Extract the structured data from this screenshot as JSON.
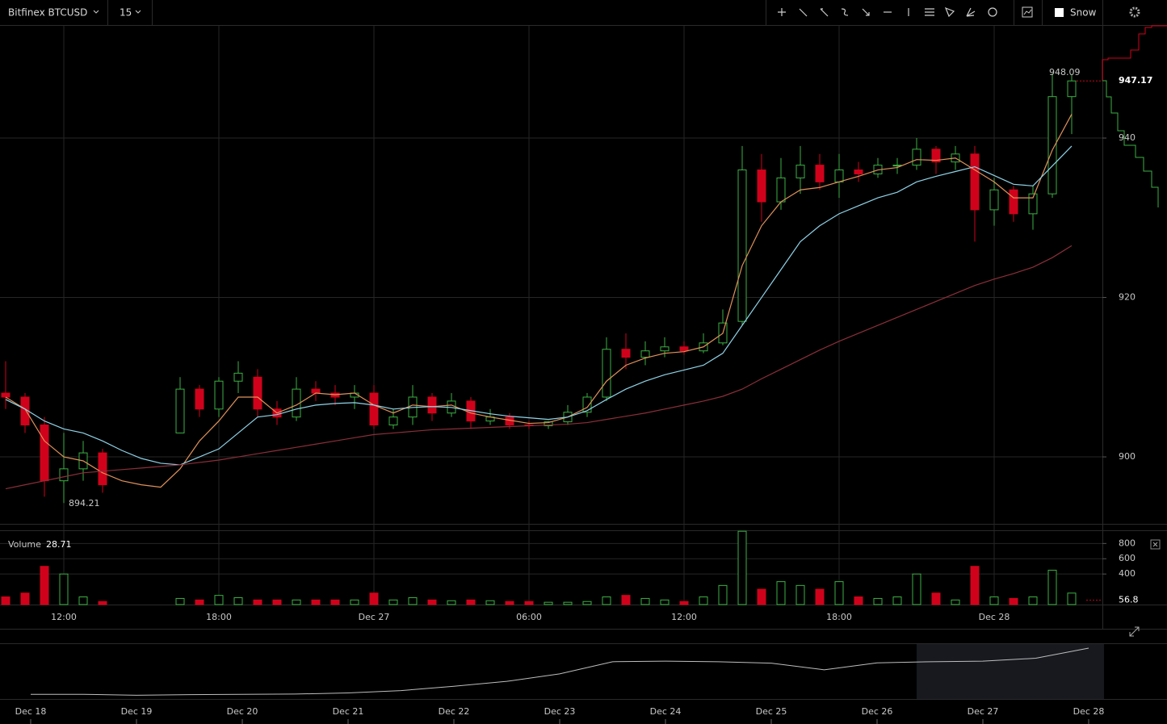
{
  "toolbar": {
    "symbol": "Bitfinex BTCUSD",
    "interval": "15",
    "snow": "Snow"
  },
  "chart_data": [
    {
      "type": "candlestick",
      "categories": [
        null,
        null,
        null,
        "12:00",
        null,
        null,
        null,
        null,
        null,
        null,
        null,
        "18:00",
        null,
        null,
        null,
        null,
        null,
        null,
        null,
        "Dec 27",
        null,
        null,
        null,
        null,
        null,
        null,
        null,
        "06:00",
        null,
        null,
        null,
        null,
        null,
        null,
        null,
        "12:00",
        null,
        null,
        null,
        null,
        null,
        null,
        null,
        "18:00",
        null,
        null,
        null,
        null,
        null,
        null,
        null,
        "Dec 28",
        null,
        null,
        null,
        null
      ],
      "open": [
        908,
        907.5,
        904,
        897,
        898.5,
        900.5,
        null,
        null,
        null,
        903,
        908.5,
        906,
        909.5,
        910,
        906,
        905,
        908.5,
        908,
        907.5,
        908,
        904,
        905,
        907.5,
        905.5,
        907,
        904.5,
        905,
        904,
        903.9,
        904.4,
        905.6,
        907.5,
        913.5,
        912.5,
        913.3,
        913.8,
        913.3,
        914.3,
        917,
        936,
        932,
        935,
        936.6,
        934.5,
        936,
        935.5,
        936.6,
        936.6,
        938.6,
        937,
        938,
        931,
        933.5,
        930.5,
        933,
        945.2
      ],
      "high": [
        912,
        908,
        905,
        903,
        902,
        901,
        null,
        null,
        null,
        910,
        909,
        910,
        912,
        911,
        907,
        910,
        909.5,
        909,
        909,
        909,
        906,
        909,
        908,
        908,
        907.5,
        906,
        905.5,
        904.5,
        904.5,
        906.5,
        908,
        915,
        915.5,
        914.5,
        915,
        914.5,
        915.5,
        918.5,
        939,
        938,
        937.5,
        939,
        938,
        938,
        937,
        937.5,
        937.5,
        940,
        939,
        939,
        939,
        935,
        934,
        934,
        948.09,
        948
      ],
      "low": [
        906,
        903,
        895,
        894.21,
        897,
        895.5,
        null,
        null,
        null,
        903,
        905,
        905,
        908,
        905,
        904,
        904.5,
        907,
        906.5,
        906,
        903.5,
        903.5,
        904,
        904.5,
        905,
        903.5,
        904,
        903.5,
        903.5,
        903.5,
        904,
        905,
        907,
        911,
        911.5,
        912.5,
        912.8,
        913,
        914,
        916.5,
        929.5,
        931,
        933,
        933.5,
        932.5,
        934.5,
        935,
        935.5,
        936,
        935.5,
        936,
        927,
        929,
        929.5,
        928.5,
        932.5,
        940.5
      ],
      "close": [
        907.5,
        904,
        897,
        898.5,
        900.5,
        896.5,
        null,
        null,
        null,
        908.5,
        906,
        909.5,
        910.5,
        906,
        905,
        908.5,
        908,
        907.5,
        908,
        904,
        905,
        907.5,
        905.5,
        907,
        904.5,
        905,
        904,
        903.9,
        904.4,
        905.6,
        907.5,
        913.5,
        912.5,
        913.3,
        913.8,
        913.3,
        914.3,
        916.8,
        936,
        932,
        935,
        936.6,
        934.5,
        936,
        935.5,
        936.6,
        936.6,
        938.6,
        937,
        938,
        931,
        933.5,
        930.5,
        933,
        945.2,
        947.17
      ],
      "up_color": "#3cb043",
      "down_color": "#d0021b",
      "overlays": [
        {
          "color": "#e0925a",
          "values": [
            907.5,
            906,
            902,
            900,
            899.5,
            898,
            897,
            896.5,
            896.2,
            898.5,
            902,
            904.5,
            907.5,
            907.5,
            905.5,
            906.5,
            908,
            907.8,
            908,
            906.5,
            905.5,
            906.5,
            906.3,
            906.5,
            905.5,
            905,
            904.6,
            904.2,
            904.3,
            905,
            906.2,
            909.5,
            911.5,
            912.4,
            913,
            913.2,
            913.8,
            915.5,
            924,
            929,
            932,
            933.5,
            933.8,
            934.5,
            935.2,
            936,
            936.3,
            937.3,
            937.2,
            937.5,
            936,
            934.5,
            932.5,
            932.5,
            938.5,
            943
          ]
        },
        {
          "color": "#8fd3e8",
          "values": [
            907.2,
            906,
            904.5,
            903.5,
            903,
            902,
            900.8,
            899.8,
            899.2,
            899,
            900,
            901,
            903,
            905,
            905.3,
            906,
            906.5,
            906.7,
            906.8,
            906.5,
            906,
            906.2,
            906.3,
            906.2,
            905.8,
            905.4,
            905.1,
            904.9,
            904.7,
            905,
            905.8,
            907.2,
            908.5,
            909.5,
            910.3,
            910.9,
            911.5,
            913,
            916.5,
            920,
            923.5,
            927,
            929,
            930.5,
            931.5,
            932.5,
            933.2,
            934.5,
            935.2,
            935.8,
            936.4,
            935.3,
            934.2,
            934,
            936.5,
            939
          ]
        },
        {
          "color": "#8b2f3a",
          "values": [
            896,
            896.5,
            897,
            897.5,
            898,
            898.2,
            898.4,
            898.6,
            898.8,
            899,
            899.3,
            899.6,
            900,
            900.4,
            900.8,
            901.2,
            901.6,
            902,
            902.4,
            902.8,
            903,
            903.2,
            903.4,
            903.5,
            903.6,
            903.7,
            903.8,
            903.9,
            904,
            904.1,
            904.3,
            904.7,
            905.1,
            905.5,
            906,
            906.5,
            907,
            907.6,
            908.5,
            909.8,
            911,
            912.2,
            913.4,
            914.5,
            915.5,
            916.5,
            917.5,
            918.5,
            919.5,
            920.5,
            921.5,
            922.3,
            923,
            923.8,
            925,
            926.5
          ]
        }
      ],
      "ylim": [
        891.7,
        954.08
      ],
      "yticks": [
        900,
        920,
        940
      ],
      "grid": true
    },
    {
      "type": "bar",
      "title": "Volume",
      "legend_value": 28.71,
      "values": [
        100,
        150,
        500,
        400,
        100,
        40,
        null,
        null,
        null,
        80,
        60,
        120,
        90,
        60,
        60,
        60,
        60,
        60,
        60,
        150,
        60,
        90,
        60,
        50,
        60,
        50,
        40,
        40,
        30,
        30,
        40,
        100,
        120,
        80,
        60,
        40,
        100,
        250,
        960,
        200,
        300,
        250,
        200,
        300,
        100,
        80,
        100,
        400,
        150,
        60,
        500,
        100,
        80,
        100,
        450,
        150
      ],
      "marker": 56.8,
      "ylim": [
        0,
        962
      ],
      "yticks": [
        400,
        600,
        800
      ],
      "grid": true
    },
    {
      "type": "line",
      "categories": [
        "Dec 18",
        null,
        "Dec 19",
        null,
        "Dec 20",
        null,
        "Dec 21",
        null,
        "Dec 22",
        null,
        "Dec 23",
        null,
        "Dec 24",
        null,
        "Dec 25",
        null,
        "Dec 26",
        null,
        "Dec 27",
        null,
        "Dec 28"
      ],
      "values": [
        787,
        787,
        784,
        786,
        787,
        788,
        792,
        800,
        815,
        832,
        858,
        900,
        902,
        900,
        895,
        872,
        896,
        900,
        902,
        912,
        947
      ],
      "color": "#bdbdbd",
      "ylim": [
        771,
        961
      ]
    }
  ]
}
